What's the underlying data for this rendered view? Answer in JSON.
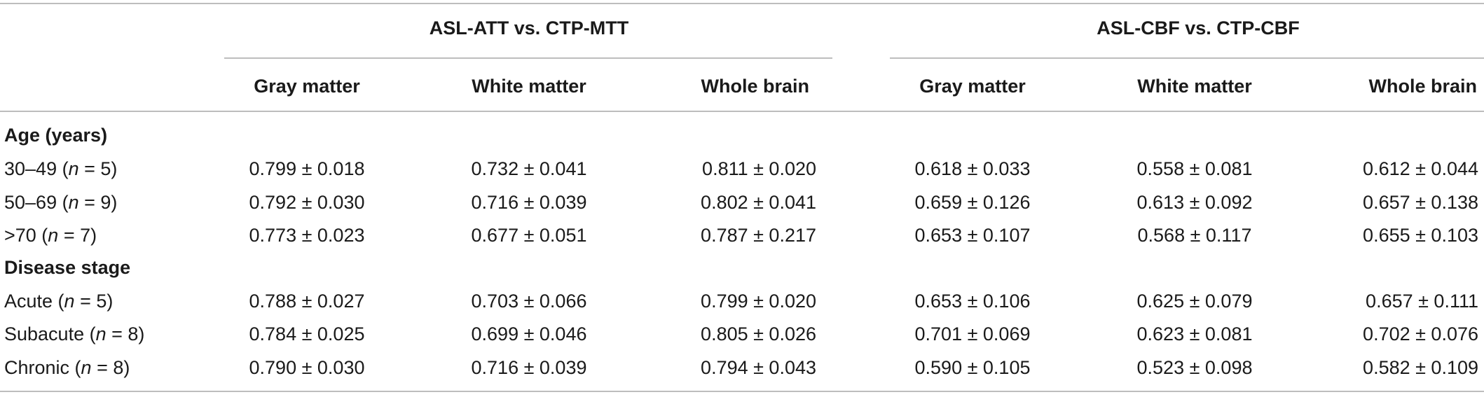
{
  "group_headers": [
    "ASL-ATT vs. CTP-MTT",
    "ASL-CBF vs. CTP-CBF"
  ],
  "column_headers": [
    "Gray matter",
    "White matter",
    "Whole brain",
    "Gray matter",
    "White matter",
    "Whole brain"
  ],
  "sections": [
    {
      "title": "Age (years)",
      "rows": [
        {
          "label_pre": "30–49 (",
          "label_var": "n",
          "label_post": " = 5)",
          "values": [
            "0.799 ± 0.018",
            "0.732 ± 0.041",
            "0.811 ± 0.020",
            "0.618 ± 0.033",
            "0.558 ± 0.081",
            "0.612 ± 0.044"
          ]
        },
        {
          "label_pre": "50–69 (",
          "label_var": "n",
          "label_post": " = 9)",
          "values": [
            "0.792 ± 0.030",
            "0.716 ± 0.039",
            "0.802 ± 0.041",
            "0.659 ± 0.126",
            "0.613 ± 0.092",
            "0.657 ± 0.138"
          ]
        },
        {
          "label_pre": ">70 (",
          "label_var": "n",
          "label_post": " = 7)",
          "values": [
            "0.773 ± 0.023",
            "0.677 ± 0.051",
            "0.787 ± 0.217",
            "0.653 ± 0.107",
            "0.568 ± 0.117",
            "0.655 ± 0.103"
          ]
        }
      ]
    },
    {
      "title": "Disease stage",
      "rows": [
        {
          "label_pre": "Acute (",
          "label_var": "n",
          "label_post": " = 5)",
          "values": [
            "0.788 ± 0.027",
            "0.703 ± 0.066",
            "0.799 ± 0.020",
            "0.653 ± 0.106",
            "0.625 ± 0.079",
            "0.657 ± 0.111"
          ]
        },
        {
          "label_pre": "Subacute (",
          "label_var": "n",
          "label_post": " = 8)",
          "values": [
            "0.784 ± 0.025",
            "0.699 ± 0.046",
            "0.805 ± 0.026",
            "0.701 ± 0.069",
            "0.623 ± 0.081",
            "0.702 ± 0.076"
          ]
        },
        {
          "label_pre": "Chronic (",
          "label_var": "n",
          "label_post": " = 8)",
          "values": [
            "0.790 ± 0.030",
            "0.716 ± 0.039",
            "0.794 ± 0.043",
            "0.590 ± 0.105",
            "0.523 ± 0.098",
            "0.582 ± 0.109"
          ]
        }
      ]
    }
  ]
}
